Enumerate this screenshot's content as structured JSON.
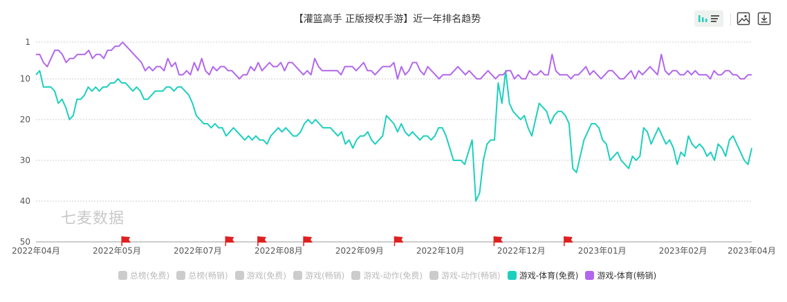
{
  "title": "【灌篮高手 正版授权手游】近一年排名趋势",
  "watermark": "七麦数据",
  "toolbar": {
    "bar_icon": "bar-chart-icon",
    "list_icon": "list-icon",
    "save_image_icon": "image-icon",
    "download_icon": "download-icon"
  },
  "colors": {
    "free": "#1ccfbd",
    "paid": "#b266ee",
    "inactive": "#cccccc",
    "flag": "#e02020",
    "grid": "#cccccc"
  },
  "legend": [
    {
      "label": "总榜(免费)",
      "active": false
    },
    {
      "label": "总榜(畅销)",
      "active": false
    },
    {
      "label": "游戏(免费)",
      "active": false
    },
    {
      "label": "游戏(畅销)",
      "active": false
    },
    {
      "label": "游戏-动作(免费)",
      "active": false
    },
    {
      "label": "游戏-动作(畅销)",
      "active": false
    },
    {
      "label": "游戏-体育(免费)",
      "active": true,
      "color": "#1ccfbd"
    },
    {
      "label": "游戏-体育(畅销)",
      "active": true,
      "color": "#b266ee"
    }
  ],
  "chart_data": {
    "type": "line",
    "title": "【灌篮高手 正版授权手游】近一年排名趋势",
    "y_inverted": true,
    "ylim": [
      1,
      50
    ],
    "yticks": [
      1,
      10,
      20,
      30,
      40,
      50
    ],
    "x_tick_labels": [
      "2022年04月",
      "2022年05月",
      "2022年07月",
      "2022年08月",
      "2022年09月",
      "2022年10月",
      "2022年12月",
      "2023年01月",
      "2023年02月",
      "2023年04月"
    ],
    "x_tick_positions": [
      0,
      0.113,
      0.226,
      0.339,
      0.452,
      0.565,
      0.678,
      0.791,
      0.904,
      1.0
    ],
    "event_flags_x": [
      0.12,
      0.265,
      0.31,
      0.374,
      0.501,
      0.64,
      0.738
    ],
    "grid": true,
    "series": [
      {
        "name": "游戏-体育(免费)",
        "color": "#1ccfbd",
        "values": [
          9,
          8,
          12,
          12,
          12,
          13,
          16,
          15,
          17,
          20,
          19,
          15,
          15,
          14,
          12,
          13,
          12,
          13,
          12,
          12,
          11,
          11,
          10,
          11,
          11,
          12,
          13,
          12,
          13,
          15,
          15,
          14,
          13,
          13,
          13,
          12,
          12,
          13,
          12,
          12,
          13,
          14,
          16,
          19,
          20,
          21,
          21,
          22,
          21,
          22,
          22,
          24,
          23,
          22,
          23,
          24,
          25,
          24,
          25,
          24,
          25,
          25,
          26,
          24,
          23,
          22,
          23,
          22,
          23,
          24,
          24,
          23,
          21,
          20,
          21,
          20,
          21,
          22,
          22,
          22,
          23,
          24,
          23,
          26,
          25,
          27,
          25,
          24,
          24,
          23,
          25,
          26,
          25,
          24,
          19,
          20,
          21,
          23,
          21,
          23,
          24,
          23,
          24,
          25,
          24,
          24,
          25,
          24,
          22,
          22,
          24,
          27,
          30,
          30,
          30,
          31,
          28,
          25,
          40,
          38,
          30,
          26,
          25,
          25,
          11,
          16,
          8,
          16,
          18,
          19,
          20,
          19,
          22,
          24,
          20,
          16,
          17,
          18,
          21,
          19,
          18,
          18,
          19,
          21,
          32,
          33,
          29,
          25,
          23,
          21,
          21,
          22,
          25,
          26,
          30,
          29,
          28,
          30,
          31,
          32,
          29,
          30,
          29,
          22,
          23,
          26,
          24,
          22,
          24,
          26,
          25,
          27,
          31,
          28,
          29,
          24,
          26,
          27,
          26,
          27,
          29,
          28,
          30,
          26,
          27,
          29,
          25,
          24,
          26,
          28,
          30,
          31,
          27
        ]
      },
      {
        "name": "游戏-体育(畅销)",
        "color": "#b266ee",
        "values": [
          4,
          4,
          6,
          7,
          5,
          3,
          3,
          4,
          6,
          5,
          5,
          4,
          4,
          4,
          3,
          5,
          4,
          4,
          5,
          3,
          3,
          2,
          2,
          1,
          2,
          3,
          4,
          5,
          6,
          8,
          7,
          8,
          7,
          7,
          8,
          5,
          7,
          6,
          9,
          9,
          8,
          9,
          6,
          8,
          5,
          8,
          9,
          7,
          8,
          7,
          7,
          8,
          8,
          9,
          10,
          9,
          9,
          7,
          8,
          6,
          8,
          7,
          6,
          7,
          7,
          6,
          8,
          6,
          6,
          7,
          8,
          9,
          8,
          9,
          5,
          7,
          8,
          8,
          8,
          8,
          8,
          9,
          7,
          7,
          7,
          8,
          7,
          6,
          8,
          8,
          9,
          8,
          7,
          7,
          7,
          6,
          10,
          7,
          9,
          8,
          6,
          6,
          8,
          9,
          7,
          8,
          9,
          10,
          9,
          9,
          9,
          8,
          7,
          8,
          9,
          8,
          9,
          10,
          10,
          9,
          8,
          9,
          10,
          9,
          9,
          8,
          8,
          10,
          9,
          10,
          10,
          8,
          9,
          9,
          8,
          9,
          9,
          4,
          8,
          9,
          9,
          9,
          10,
          9,
          9,
          8,
          7,
          9,
          8,
          9,
          10,
          9,
          8,
          8,
          9,
          10,
          10,
          9,
          8,
          10,
          8,
          9,
          8,
          7,
          8,
          9,
          4,
          8,
          9,
          8,
          8,
          9,
          9,
          8,
          9,
          8,
          9,
          9,
          9,
          10,
          8,
          9,
          9,
          8,
          8,
          9,
          9,
          10,
          10,
          9,
          9
        ]
      }
    ]
  }
}
